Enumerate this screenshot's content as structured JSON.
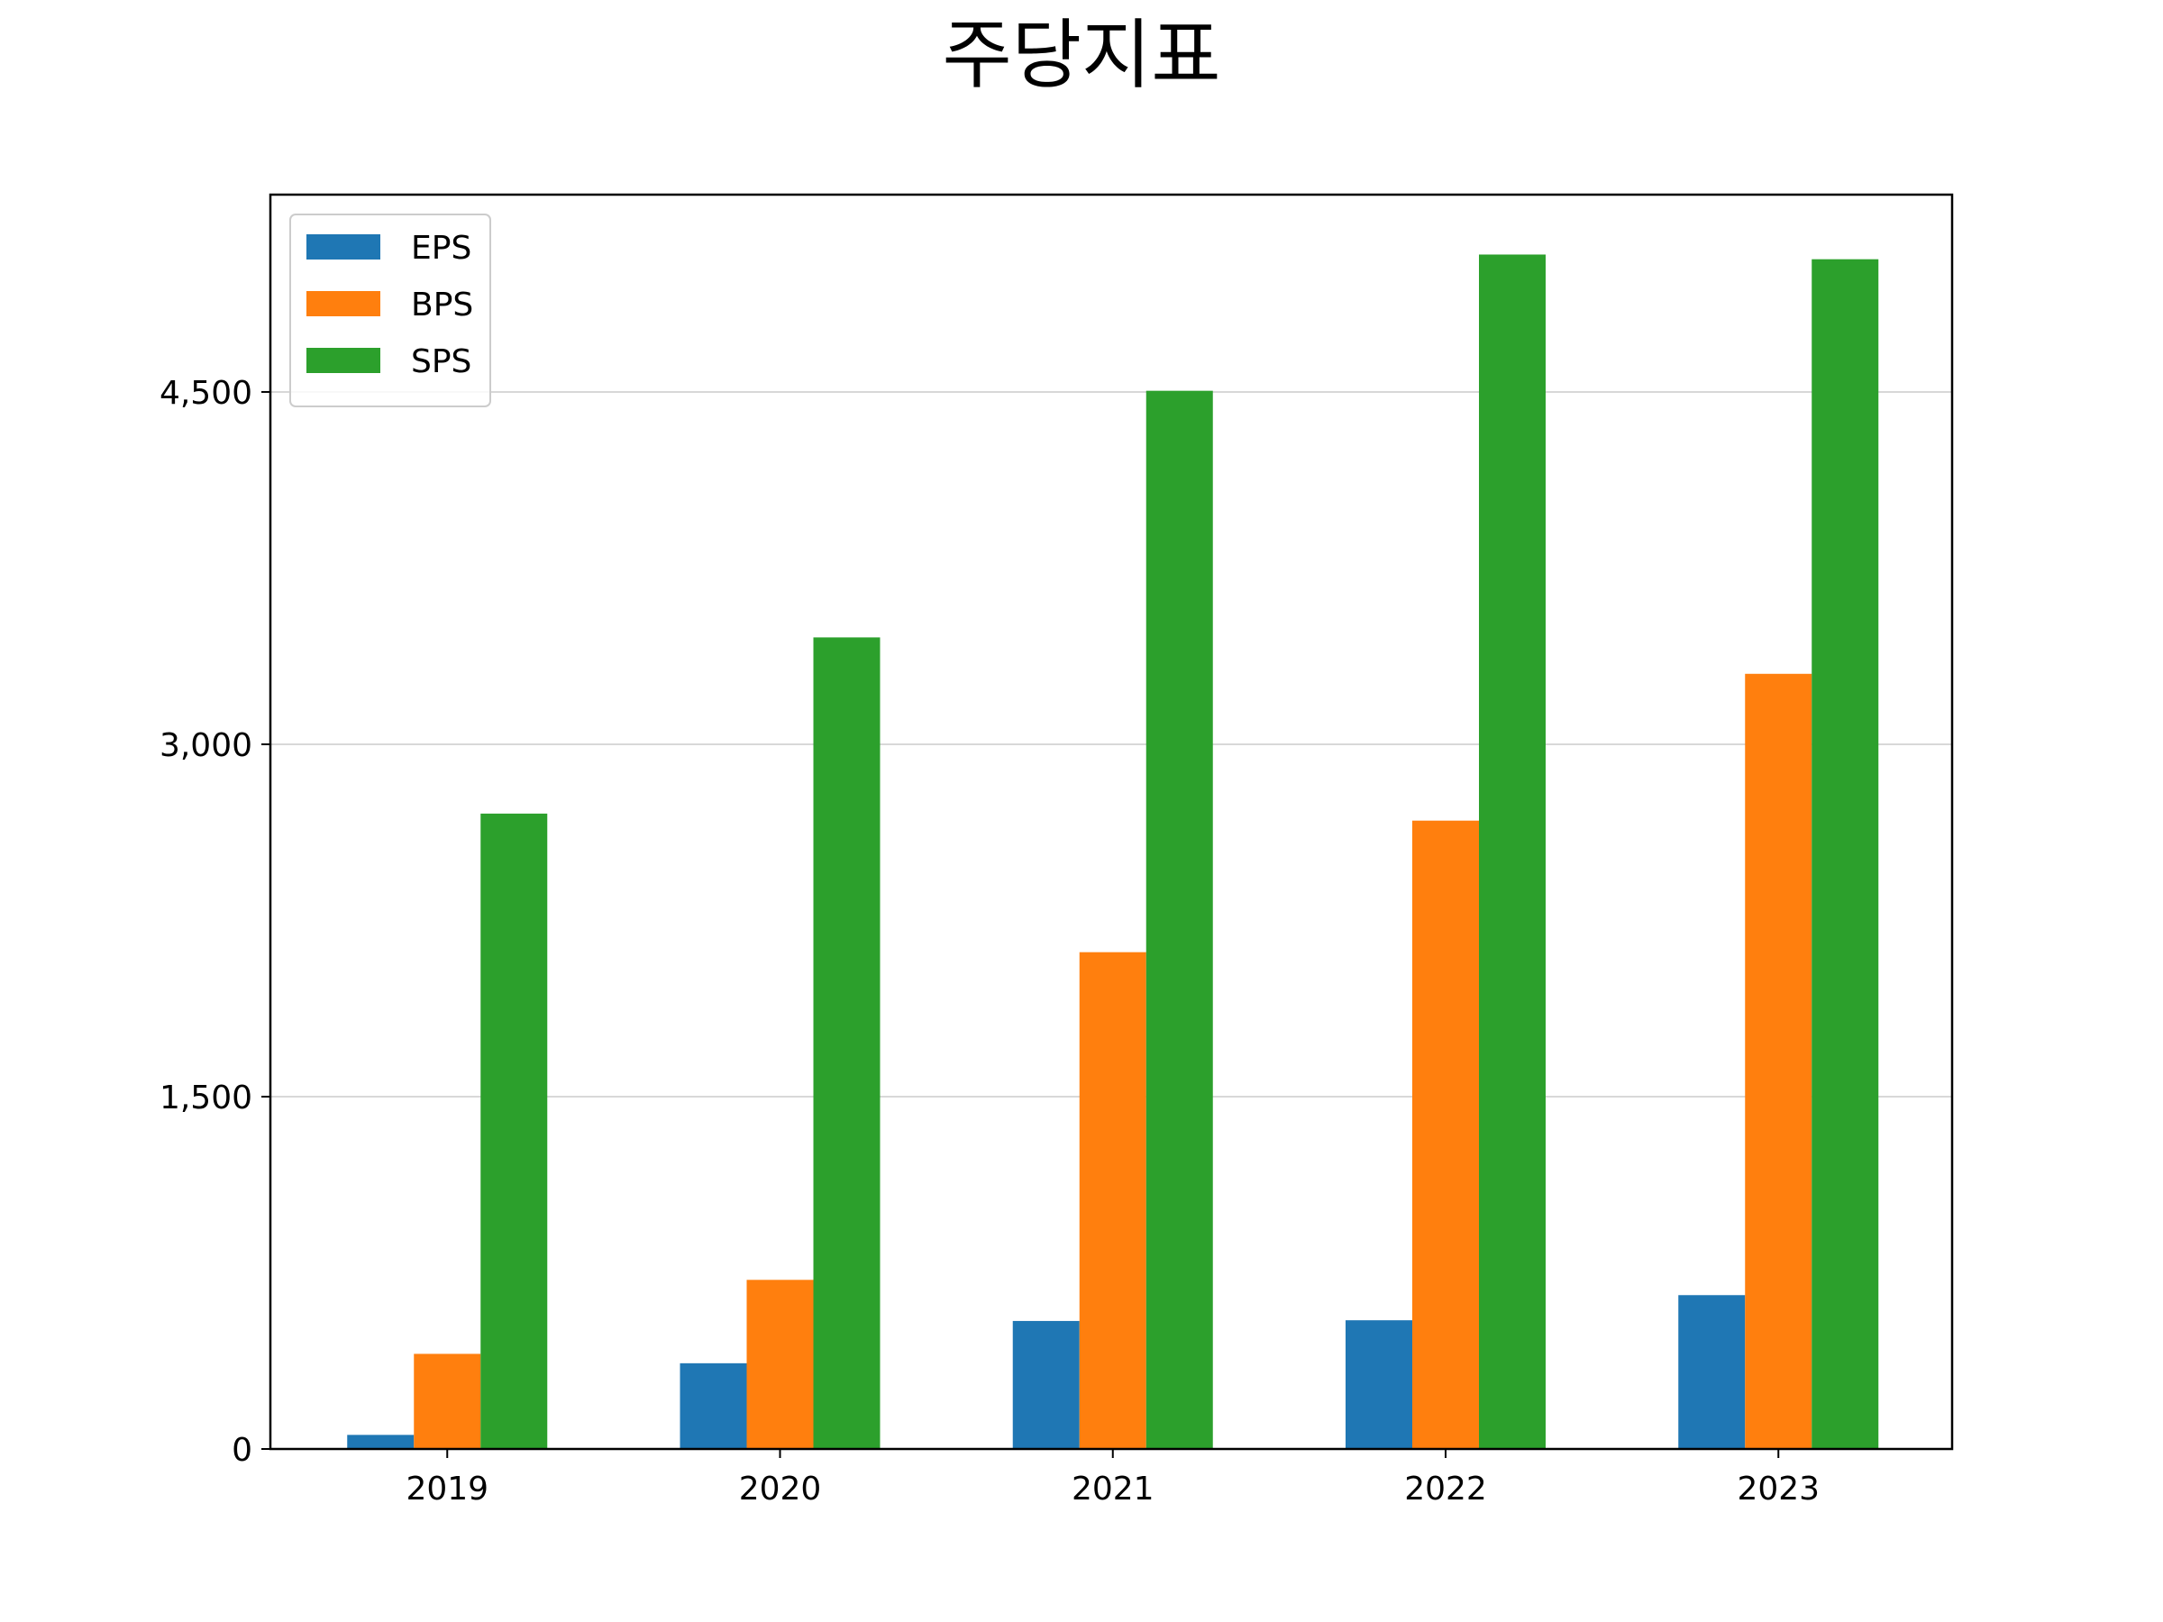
{
  "chart_data": {
    "type": "bar",
    "title": "주당지표",
    "xlabel": "",
    "ylabel": "",
    "categories": [
      "2019",
      "2020",
      "2021",
      "2022",
      "2023"
    ],
    "series": [
      {
        "name": "EPS",
        "color": "#1f77b4",
        "values": [
          60,
          365,
          545,
          548,
          655
        ]
      },
      {
        "name": "BPS",
        "color": "#ff7f0e",
        "values": [
          405,
          720,
          2115,
          2675,
          3300
        ]
      },
      {
        "name": "SPS",
        "color": "#2ca02c",
        "values": [
          2705,
          3455,
          4505,
          5085,
          5065
        ]
      }
    ],
    "ylim": [
      0,
      5340
    ],
    "yticks": [
      0,
      1500,
      3000,
      4500
    ],
    "ytick_labels": [
      "0",
      "1,500",
      "3,000",
      "4,500"
    ],
    "grid": {
      "axis": "y",
      "visible": true
    },
    "legend": {
      "position": "top-left"
    }
  }
}
